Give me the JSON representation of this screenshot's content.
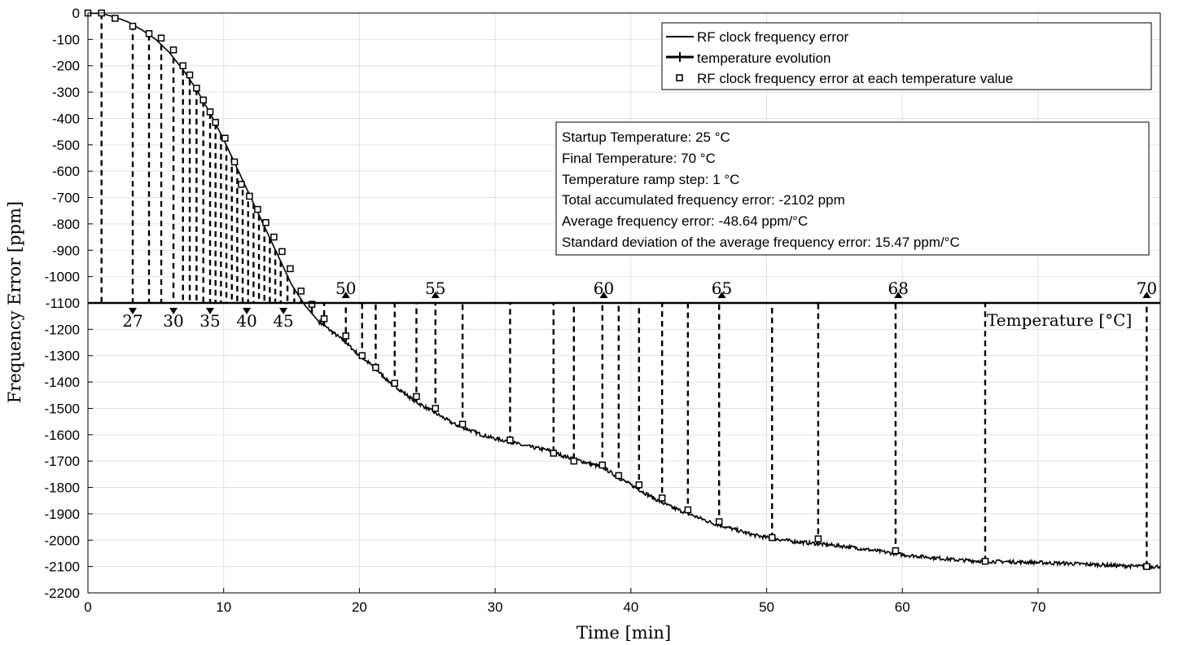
{
  "chart_data": {
    "type": "line",
    "xlabel": "Time [min]",
    "ylabel": "Frequency Error [ppm]",
    "xlim": [
      0,
      79
    ],
    "ylim": [
      -2200,
      0
    ],
    "x_ticks": [
      0,
      10,
      20,
      30,
      40,
      50,
      60,
      70
    ],
    "y_ticks": [
      0,
      -100,
      -200,
      -300,
      -400,
      -500,
      -600,
      -700,
      -800,
      -900,
      -1000,
      -1100,
      -1200,
      -1300,
      -1400,
      -1500,
      -1600,
      -1700,
      -1800,
      -1900,
      -2000,
      -2100,
      -2200
    ],
    "grid": true,
    "legend_position": "top-right",
    "legend": [
      "RF clock frequency error",
      "temperature evolution",
      "RF clock frequency error at each temperature value"
    ],
    "series": [
      {
        "name": "RF clock frequency error",
        "x": [
          0,
          1,
          2,
          3,
          4,
          5,
          6,
          7,
          8,
          9,
          10,
          11,
          12,
          13,
          14,
          15,
          16,
          17,
          18,
          19,
          20,
          21,
          22,
          23,
          24,
          25,
          26,
          27,
          28,
          29,
          30,
          31,
          32,
          33,
          34,
          35,
          36,
          37,
          38,
          39,
          40,
          41,
          42,
          43,
          44,
          45,
          46,
          47,
          48,
          49,
          50,
          52,
          54,
          56,
          58,
          60,
          62,
          64,
          66,
          68,
          70,
          72,
          74,
          76,
          78,
          79
        ],
        "y": [
          0,
          -2,
          -15,
          -35,
          -65,
          -100,
          -150,
          -215,
          -290,
          -380,
          -480,
          -590,
          -700,
          -810,
          -920,
          -1030,
          -1110,
          -1170,
          -1210,
          -1250,
          -1300,
          -1340,
          -1390,
          -1430,
          -1470,
          -1500,
          -1530,
          -1560,
          -1580,
          -1600,
          -1615,
          -1625,
          -1640,
          -1650,
          -1660,
          -1680,
          -1695,
          -1710,
          -1725,
          -1760,
          -1790,
          -1820,
          -1850,
          -1875,
          -1895,
          -1915,
          -1935,
          -1950,
          -1965,
          -1980,
          -1990,
          -2005,
          -2015,
          -2025,
          -2040,
          -2055,
          -2065,
          -2075,
          -2080,
          -2082,
          -2085,
          -2088,
          -2092,
          -2097,
          -2100,
          -2100
        ]
      },
      {
        "name": "RF clock frequency error at each temperature value",
        "x": [
          0,
          1,
          2,
          3.3,
          4.5,
          5.4,
          6.3,
          7,
          7.5,
          8,
          8.5,
          9,
          9.4,
          10.1,
          10.8,
          11.3,
          11.9,
          12.5,
          13.1,
          13.7,
          14.3,
          14.9,
          15.7,
          16.5,
          17.4,
          19,
          20.2,
          21.2,
          22.6,
          24.2,
          25.6,
          27.6,
          31.1,
          34.3,
          35.8,
          37.9,
          39.1,
          40.6,
          42.3,
          44.2,
          46.5,
          50.4,
          53.8,
          59.5,
          66.1,
          78
        ],
        "y": [
          0,
          0,
          -20,
          -50,
          -78,
          -95,
          -140,
          -200,
          -235,
          -285,
          -330,
          -375,
          -415,
          -475,
          -565,
          -650,
          -695,
          -745,
          -795,
          -850,
          -905,
          -970,
          -1055,
          -1105,
          -1160,
          -1225,
          -1300,
          -1345,
          -1405,
          -1455,
          -1500,
          -1560,
          -1620,
          -1670,
          -1700,
          -1715,
          -1755,
          -1790,
          -1840,
          -1885,
          -1930,
          -1990,
          -1995,
          -2040,
          -2080,
          -2100
        ]
      }
    ],
    "temperature_axis": {
      "label": "Temperature [°C]",
      "baseline_y": -1100,
      "ticks_below": [
        {
          "x": 3.3,
          "label": "27"
        },
        {
          "x": 6.3,
          "label": "30"
        },
        {
          "x": 9.0,
          "label": "35"
        },
        {
          "x": 11.7,
          "label": "40"
        },
        {
          "x": 14.4,
          "label": "45"
        }
      ],
      "ticks_above": [
        {
          "x": 19.0,
          "label": "50"
        },
        {
          "x": 25.6,
          "label": "55"
        },
        {
          "x": 38.0,
          "label": "60"
        },
        {
          "x": 46.7,
          "label": "65"
        },
        {
          "x": 59.7,
          "label": "68"
        },
        {
          "x": 78.0,
          "label": "70"
        }
      ],
      "step_times": [
        1.0,
        3.3,
        4.5,
        5.4,
        6.3,
        7.0,
        7.5,
        8.0,
        8.5,
        9.0,
        9.4,
        9.8,
        10.2,
        10.6,
        11.0,
        11.4,
        11.8,
        12.2,
        12.6,
        13.0,
        13.4,
        13.8,
        14.2,
        14.7,
        15.2,
        15.7,
        16.5,
        17.4,
        19.0,
        20.2,
        21.2,
        22.6,
        24.2,
        25.6,
        27.6,
        31.1,
        34.3,
        35.8,
        37.9,
        39.1,
        40.6,
        42.3,
        44.2,
        46.5,
        50.4,
        53.8,
        59.5,
        66.1,
        78.0
      ]
    },
    "info_box": [
      "Startup Temperature: 25 °C",
      "Final Temperature: 70 °C",
      "Temperature ramp step: 1 °C",
      "Total accumulated frequency error: -2102 ppm",
      "Average frequency error: -48.64 ppm/°C",
      "Standard deviation of the average frequency error: 15.47 ppm/°C"
    ]
  }
}
